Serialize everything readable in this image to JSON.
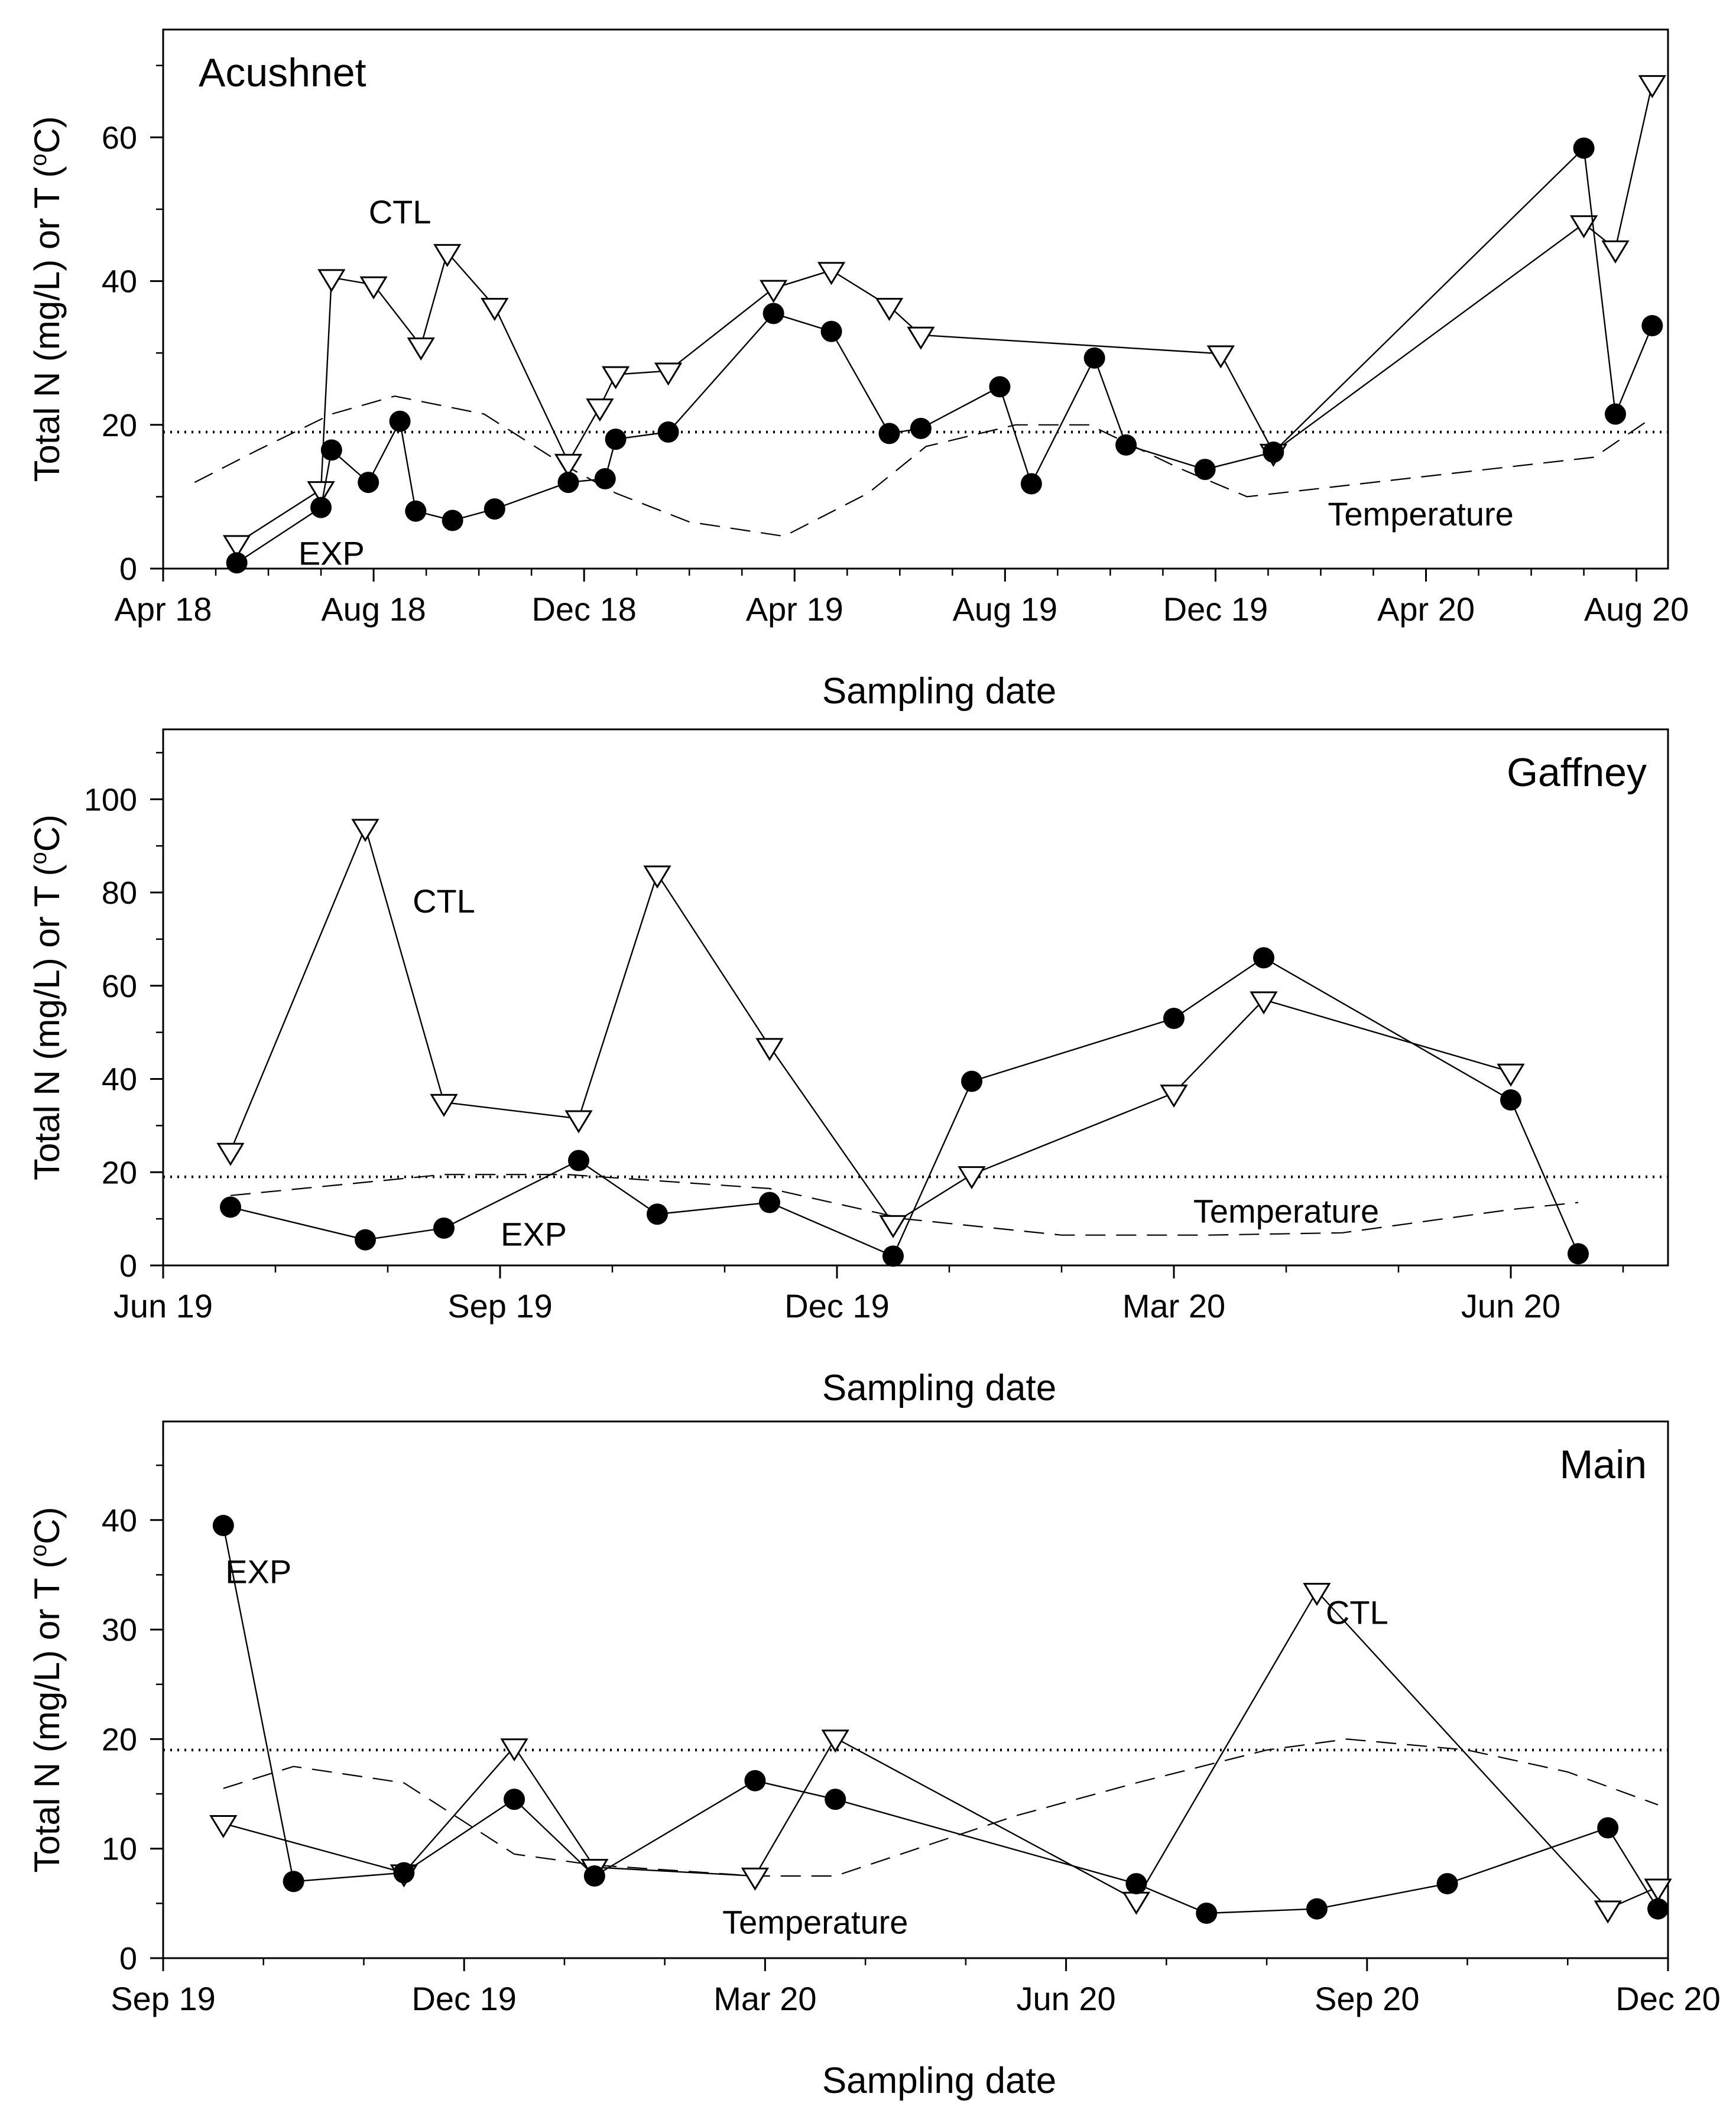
{
  "chart_data": [
    {
      "type": "line",
      "title": "Acushnet",
      "xlabel": "Sampling date",
      "ylabel_main": "Total N (mg/L) or T (",
      "ylabel_sup": "o",
      "ylabel_end": "C)",
      "xlim": [
        0,
        28.6
      ],
      "ylim": [
        0,
        75
      ],
      "xticks": [
        {
          "v": 0,
          "label": "Apr 18"
        },
        {
          "v": 4,
          "label": "Aug 18"
        },
        {
          "v": 8,
          "label": "Dec 18"
        },
        {
          "v": 12,
          "label": "Apr 19"
        },
        {
          "v": 16,
          "label": "Aug 19"
        },
        {
          "v": 20,
          "label": "Dec 19"
        },
        {
          "v": 24,
          "label": "Apr 20"
        },
        {
          "v": 28,
          "label": "Aug 20"
        }
      ],
      "yticks": [
        0,
        20,
        40,
        60
      ],
      "reference_line": 19,
      "annotations": [
        {
          "text": "CTL",
          "x": 4.5,
          "y": 49.5
        },
        {
          "text": "EXP",
          "x": 3.2,
          "y": 2
        },
        {
          "text": "Temperature",
          "x": 23.9,
          "y": 7.5
        }
      ],
      "series": [
        {
          "name": "CTL",
          "marker": "triangle-open",
          "points": [
            [
              1.4,
              3.5
            ],
            [
              3.0,
              11
            ],
            [
              3.2,
              40.5
            ],
            [
              4.0,
              39.5
            ],
            [
              4.9,
              31
            ],
            [
              5.4,
              44
            ],
            [
              6.3,
              36.5
            ],
            [
              7.7,
              14.8
            ],
            [
              8.3,
              22.5
            ],
            [
              8.6,
              27
            ],
            [
              9.6,
              27.5
            ],
            [
              11.6,
              39
            ],
            [
              12.7,
              41.5
            ],
            [
              13.8,
              36.5
            ],
            [
              14.4,
              32.5
            ],
            [
              20.1,
              29.9
            ],
            [
              21.1,
              16.2
            ],
            [
              27.0,
              48
            ],
            [
              27.6,
              44.5
            ],
            [
              28.3,
              67.5
            ]
          ]
        },
        {
          "name": "EXP",
          "marker": "circle-filled",
          "points": [
            [
              1.4,
              0.8
            ],
            [
              3.0,
              8.5
            ],
            [
              3.2,
              16.5
            ],
            [
              3.9,
              12
            ],
            [
              4.5,
              20.5
            ],
            [
              4.8,
              8
            ],
            [
              5.5,
              6.7
            ],
            [
              6.3,
              8.3
            ],
            [
              7.7,
              12
            ],
            [
              8.4,
              12.5
            ],
            [
              8.6,
              18
            ],
            [
              9.6,
              19
            ],
            [
              11.6,
              35.5
            ],
            [
              12.7,
              33
            ],
            [
              13.8,
              18.8
            ],
            [
              14.4,
              19.5
            ],
            [
              15.9,
              25.3
            ],
            [
              16.5,
              11.8
            ],
            [
              17.7,
              29.3
            ],
            [
              18.3,
              17.2
            ],
            [
              19.8,
              13.8
            ],
            [
              21.1,
              16.2
            ],
            [
              27.0,
              58.5
            ],
            [
              27.6,
              21.5
            ],
            [
              28.3,
              33.8
            ]
          ]
        },
        {
          "name": "Temperature",
          "marker": "none",
          "dashed": true,
          "points": [
            [
              0.6,
              12
            ],
            [
              1.8,
              16.5
            ],
            [
              3.2,
              21.5
            ],
            [
              4.4,
              24
            ],
            [
              6.1,
              21.5
            ],
            [
              7.6,
              14.5
            ],
            [
              8.6,
              10.5
            ],
            [
              10.0,
              6.5
            ],
            [
              11.8,
              4.5
            ],
            [
              13.4,
              10.5
            ],
            [
              14.5,
              17
            ],
            [
              16.2,
              20
            ],
            [
              17.6,
              20
            ],
            [
              19.3,
              14
            ],
            [
              20.6,
              10
            ],
            [
              27.2,
              15.5
            ],
            [
              28.3,
              21
            ]
          ]
        }
      ]
    },
    {
      "type": "line",
      "title": "Gaffney",
      "xlabel": "Sampling date",
      "ylabel_main": "Total N (mg/L) or T (",
      "ylabel_sup": "o",
      "ylabel_end": "C)",
      "xlim": [
        0,
        13.4
      ],
      "ylim": [
        0,
        115
      ],
      "xticks": [
        {
          "v": 0,
          "label": "Jun 19"
        },
        {
          "v": 3,
          "label": "Sep 19"
        },
        {
          "v": 6,
          "label": "Dec 19"
        },
        {
          "v": 9,
          "label": "Mar 20"
        },
        {
          "v": 12,
          "label": "Jun 20"
        }
      ],
      "yticks": [
        0,
        20,
        40,
        60,
        80,
        100
      ],
      "reference_line": 19,
      "annotations": [
        {
          "text": "CTL",
          "x": 2.5,
          "y": 78
        },
        {
          "text": "EXP",
          "x": 3.3,
          "y": 6.5
        },
        {
          "text": "Temperature",
          "x": 10.0,
          "y": 11.5
        }
      ],
      "series": [
        {
          "name": "CTL",
          "marker": "triangle-open",
          "points": [
            [
              0.6,
              24.5
            ],
            [
              1.8,
              94
            ],
            [
              2.5,
              35
            ],
            [
              3.7,
              31.5
            ],
            [
              4.4,
              84
            ],
            [
              5.4,
              47
            ],
            [
              6.5,
              9
            ],
            [
              7.2,
              19.5
            ],
            [
              9.0,
              37
            ],
            [
              9.8,
              57
            ],
            [
              12.0,
              41.5
            ]
          ]
        },
        {
          "name": "EXP",
          "marker": "circle-filled",
          "points": [
            [
              0.6,
              12.5
            ],
            [
              1.8,
              5.5
            ],
            [
              2.5,
              8
            ],
            [
              3.7,
              22.5
            ],
            [
              4.4,
              11
            ],
            [
              5.4,
              13.5
            ],
            [
              6.5,
              2
            ],
            [
              7.2,
              39.5
            ],
            [
              9.0,
              53
            ],
            [
              9.8,
              66
            ],
            [
              12.0,
              35.5
            ],
            [
              12.6,
              2.5
            ]
          ]
        },
        {
          "name": "Temperature",
          "marker": "none",
          "dashed": true,
          "points": [
            [
              0.6,
              15
            ],
            [
              2.5,
              19.5
            ],
            [
              3.6,
              19.5
            ],
            [
              5.4,
              16.5
            ],
            [
              6.6,
              10
            ],
            [
              8.0,
              6.5
            ],
            [
              9.3,
              6.5
            ],
            [
              10.5,
              7
            ],
            [
              12.0,
              12
            ],
            [
              12.6,
              13.5
            ]
          ]
        }
      ]
    },
    {
      "type": "line",
      "title": "Main",
      "xlabel": "Sampling date",
      "ylabel_main": "Total N (mg/L) or T (",
      "ylabel_sup": "o",
      "ylabel_end": "C)",
      "xlim": [
        0,
        15
      ],
      "ylim": [
        0,
        49
      ],
      "xticks": [
        {
          "v": 0,
          "label": "Sep 19"
        },
        {
          "v": 3,
          "label": "Dec 19"
        },
        {
          "v": 6,
          "label": "Mar 20"
        },
        {
          "v": 9,
          "label": "Jun 20"
        },
        {
          "v": 12,
          "label": "Sep 20"
        },
        {
          "v": 15,
          "label": "Dec 20"
        }
      ],
      "yticks": [
        0,
        10,
        20,
        30,
        40
      ],
      "reference_line": 19,
      "annotations": [
        {
          "text": "EXP",
          "x": 0.95,
          "y": 35.2
        },
        {
          "text": "CTL",
          "x": 11.9,
          "y": 31.5
        },
        {
          "text": "Temperature",
          "x": 6.5,
          "y": 3.2
        }
      ],
      "series": [
        {
          "name": "CTL",
          "marker": "triangle-open",
          "points": [
            [
              0.6,
              12.3
            ],
            [
              2.4,
              7.8
            ],
            [
              3.5,
              19.3
            ],
            [
              4.3,
              8.3
            ],
            [
              5.9,
              7.5
            ],
            [
              6.7,
              20.1
            ],
            [
              9.7,
              5.3
            ],
            [
              11.5,
              33.5
            ],
            [
              14.4,
              4.5
            ],
            [
              14.9,
              6.5
            ]
          ]
        },
        {
          "name": "EXP",
          "marker": "circle-filled",
          "points": [
            [
              0.6,
              39.5
            ],
            [
              1.3,
              7
            ],
            [
              2.4,
              7.8
            ],
            [
              3.5,
              14.5
            ],
            [
              4.3,
              7.5
            ],
            [
              5.9,
              16.2
            ],
            [
              6.7,
              14.5
            ],
            [
              9.7,
              6.8
            ],
            [
              10.4,
              4.1
            ],
            [
              11.5,
              4.5
            ],
            [
              12.8,
              6.8
            ],
            [
              14.4,
              11.9
            ],
            [
              14.9,
              4.5
            ]
          ]
        },
        {
          "name": "Temperature",
          "marker": "none",
          "dashed": true,
          "points": [
            [
              0.6,
              15.5
            ],
            [
              1.3,
              17.5
            ],
            [
              2.4,
              16
            ],
            [
              3.5,
              9.5
            ],
            [
              4.3,
              8.5
            ],
            [
              5.9,
              7.5
            ],
            [
              6.7,
              7.5
            ],
            [
              8.5,
              13
            ],
            [
              9.7,
              16
            ],
            [
              11.0,
              19
            ],
            [
              11.8,
              20
            ],
            [
              13.0,
              19
            ],
            [
              14.0,
              17
            ],
            [
              14.9,
              14
            ]
          ]
        }
      ]
    }
  ]
}
